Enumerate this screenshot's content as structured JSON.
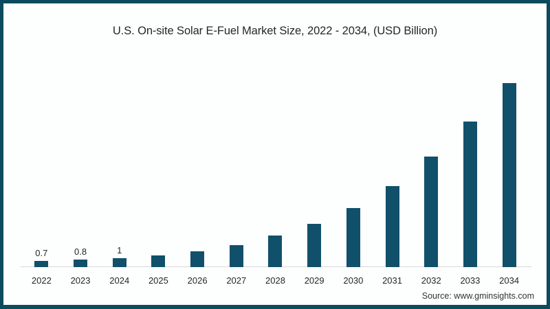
{
  "page": {
    "title": "U.S. On-site Solar E-Fuel Market Size, 2022 - 2034, (USD Billion)",
    "source": "Source: www.gminsights.com"
  },
  "colors": {
    "bar": "#11506a",
    "frame": "#0c4a5f",
    "axis_line": "#d9d9d9",
    "text": "#262626"
  },
  "chart_data": {
    "type": "bar",
    "title": "U.S. On-site Solar E-Fuel Market Size, 2022 - 2034, (USD Billion)",
    "categories": [
      "2022",
      "2023",
      "2024",
      "2025",
      "2026",
      "2027",
      "2028",
      "2029",
      "2030",
      "2031",
      "2032",
      "2033",
      "2034"
    ],
    "values": [
      0.7,
      0.8,
      1,
      1.3,
      1.7,
      2.4,
      3.4,
      4.7,
      6.4,
      8.8,
      12,
      15.8,
      20
    ],
    "data_labels": [
      "0.7",
      "0.8",
      "1",
      "",
      "",
      "",
      "",
      "",
      "",
      "",
      "",
      "",
      ""
    ],
    "xlabel": "",
    "ylabel": "",
    "ylim": [
      0,
      21
    ],
    "grid": false,
    "legend": false,
    "bar_color": "#11506a",
    "source": "Source: www.gminsights.com"
  }
}
